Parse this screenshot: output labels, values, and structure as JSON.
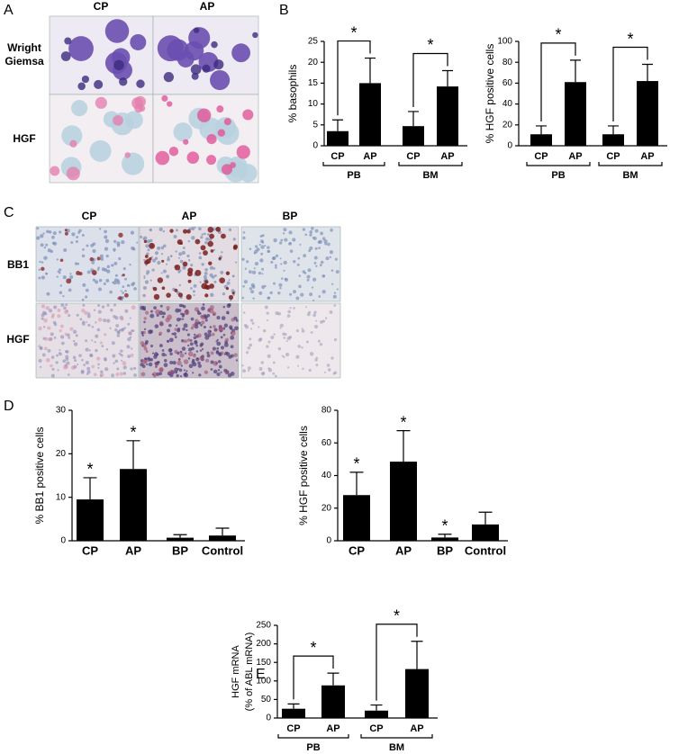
{
  "panels": {
    "letters": [
      "A",
      "B",
      "C",
      "D",
      "E"
    ],
    "panel_a": {
      "columns": [
        "CP",
        "AP"
      ],
      "rows": [
        [
          "Wright",
          "Giemsa"
        ],
        [
          "HGF"
        ]
      ]
    },
    "panel_c": {
      "columns": [
        "CP",
        "AP",
        "BP"
      ],
      "rows": [
        "BB1",
        "HGF"
      ]
    }
  },
  "chart_data": [
    {
      "type": "bar",
      "ylabel": "% basophils",
      "categories": [
        "CP",
        "AP",
        "CP",
        "AP"
      ],
      "groups": [
        "PB",
        "BM"
      ],
      "values": [
        3.5,
        15,
        4.7,
        14.2
      ],
      "errors": [
        2.7,
        6,
        3.5,
        3.8
      ],
      "color": "#000000",
      "ylim": [
        0,
        25
      ],
      "yticks": [
        0,
        5,
        10,
        15,
        20,
        25
      ],
      "brackets": [
        "*",
        "*"
      ]
    },
    {
      "type": "bar",
      "ylabel": "% HGF positive cells",
      "categories": [
        "CP",
        "AP",
        "CP",
        "AP"
      ],
      "groups": [
        "PB",
        "BM"
      ],
      "values": [
        11,
        61,
        11,
        62
      ],
      "errors": [
        8,
        21,
        8,
        16
      ],
      "color": "#000000",
      "ylim": [
        0,
        100
      ],
      "yticks": [
        0,
        20,
        40,
        60,
        80,
        100
      ],
      "brackets": [
        "*",
        "*"
      ]
    },
    {
      "type": "bar",
      "ylabel": "% BB1 positive cells",
      "categories": [
        "CP",
        "AP",
        "BP",
        "Control"
      ],
      "values": [
        9.5,
        16.5,
        0.7,
        1.2
      ],
      "errors": [
        5,
        6.5,
        0.7,
        1.7
      ],
      "color": "#000000",
      "ylim": [
        0,
        30
      ],
      "yticks": [
        0,
        10,
        20,
        30
      ],
      "markers": [
        "*",
        "*",
        null,
        null
      ]
    },
    {
      "type": "bar",
      "ylabel": "% HGF positive cells",
      "categories": [
        "CP",
        "AP",
        "BP",
        "Control"
      ],
      "values": [
        28,
        48.5,
        2,
        10
      ],
      "errors": [
        14,
        19,
        2,
        7.5
      ],
      "color": "#000000",
      "ylim": [
        0,
        80
      ],
      "yticks": [
        0,
        20,
        40,
        60,
        80
      ],
      "markers": [
        "*",
        "*",
        "*",
        null
      ]
    },
    {
      "type": "bar",
      "ylabel": [
        "HGF mRNA",
        "(% of ABL mRNA)"
      ],
      "categories": [
        "CP",
        "AP",
        "CP",
        "AP"
      ],
      "groups": [
        "PB",
        "BM"
      ],
      "values": [
        25,
        88,
        20,
        132
      ],
      "errors": [
        13,
        33,
        15,
        75
      ],
      "color": "#000000",
      "ylim": [
        0,
        250
      ],
      "yticks": [
        0,
        50,
        100,
        150,
        200,
        250
      ],
      "brackets": [
        "*",
        "*"
      ]
    }
  ]
}
